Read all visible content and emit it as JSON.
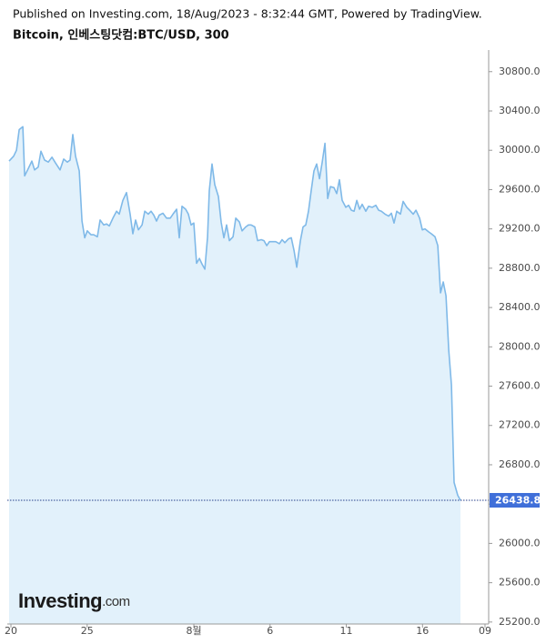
{
  "chart_data": {
    "type": "area",
    "source": "Published on Investing.com, 18/Aug/2023 - 8:32:44 GMT, Powered by TradingView.",
    "title": "Bitcoin, 인베스팅닷컴:BTC/USD, 300",
    "watermark": [
      "Investing",
      ".com"
    ],
    "color": "#7fb9e8",
    "fill_color": "#e2f1fb",
    "last_value_color": "#3f6fd9",
    "xlim": [
      -0.24,
      31.34
    ],
    "ylim": [
      25180,
      31020
    ],
    "xticks": [
      {
        "value": 0,
        "label": "20"
      },
      {
        "value": 5,
        "label": "25"
      },
      {
        "value": 12,
        "label": "8월"
      },
      {
        "value": 17,
        "label": "6"
      },
      {
        "value": 22,
        "label": "11"
      },
      {
        "value": 27,
        "label": "16"
      },
      {
        "value": 31.1,
        "label": "09"
      }
    ],
    "yticks": [
      {
        "value": 25200,
        "label": "25200.0"
      },
      {
        "value": 25600,
        "label": "25600.0"
      },
      {
        "value": 26000,
        "label": "26000.0"
      },
      {
        "value": 26400,
        "label": "26400.0"
      },
      {
        "value": 26800,
        "label": "26800.0"
      },
      {
        "value": 27200,
        "label": "27200.0"
      },
      {
        "value": 27600,
        "label": "27600.0"
      },
      {
        "value": 28000,
        "label": "28000.0"
      },
      {
        "value": 28400,
        "label": "28400.0"
      },
      {
        "value": 28800,
        "label": "28800.0"
      },
      {
        "value": 29200,
        "label": "29200.0"
      },
      {
        "value": 29600,
        "label": "29600.0"
      },
      {
        "value": 30000,
        "label": "30000.0"
      },
      {
        "value": 30400,
        "label": "30400.0"
      },
      {
        "value": 30800,
        "label": "30800.0"
      }
    ],
    "x": [
      -0.12,
      0.18,
      0.36,
      0.54,
      0.78,
      0.9,
      1.13,
      1.37,
      1.55,
      1.79,
      1.97,
      2.21,
      2.45,
      2.69,
      2.93,
      3.22,
      3.46,
      3.7,
      3.88,
      4.06,
      4.24,
      4.48,
      4.66,
      4.84,
      5.01,
      5.25,
      5.43,
      5.67,
      5.85,
      6.09,
      6.27,
      6.45,
      6.69,
      6.93,
      7.1,
      7.34,
      7.58,
      7.82,
      8.0,
      8.18,
      8.36,
      8.6,
      8.78,
      9.01,
      9.19,
      9.37,
      9.55,
      9.73,
      9.97,
      10.21,
      10.45,
      10.63,
      10.87,
      11.04,
      11.22,
      11.46,
      11.64,
      11.82,
      12.0,
      12.18,
      12.36,
      12.54,
      12.72,
      12.9,
      13.01,
      13.19,
      13.37,
      13.61,
      13.79,
      13.97,
      14.15,
      14.33,
      14.57,
      14.75,
      14.99,
      15.16,
      15.4,
      15.58,
      15.76,
      16.0,
      16.18,
      16.42,
      16.6,
      16.78,
      16.96,
      17.19,
      17.37,
      17.61,
      17.79,
      17.97,
      18.21,
      18.39,
      18.57,
      18.75,
      18.99,
      19.16,
      19.34,
      19.52,
      19.7,
      19.88,
      20.06,
      20.24,
      20.42,
      20.6,
      20.78,
      20.96,
      21.19,
      21.37,
      21.55,
      21.73,
      21.97,
      22.15,
      22.33,
      22.51,
      22.69,
      22.87,
      23.04,
      23.28,
      23.46,
      23.7,
      23.94,
      24.12,
      24.3,
      24.54,
      24.78,
      24.96,
      25.13,
      25.31,
      25.55,
      25.73,
      25.97,
      26.15,
      26.39,
      26.57,
      26.81,
      26.99,
      27.16,
      27.4,
      27.58,
      27.82,
      28.0,
      28.18,
      28.36,
      28.54,
      28.72,
      28.9,
      29.07,
      29.31,
      29.49
    ],
    "values": [
      29890,
      29940,
      30000,
      30210,
      30240,
      29740,
      29810,
      29890,
      29800,
      29830,
      29990,
      29900,
      29880,
      29930,
      29870,
      29800,
      29910,
      29880,
      29900,
      30160,
      29940,
      29790,
      29280,
      29110,
      29180,
      29140,
      29140,
      29120,
      29290,
      29240,
      29250,
      29230,
      29310,
      29380,
      29350,
      29490,
      29570,
      29350,
      29150,
      29290,
      29190,
      29240,
      29380,
      29350,
      29380,
      29340,
      29280,
      29340,
      29360,
      29310,
      29310,
      29350,
      29400,
      29110,
      29430,
      29400,
      29350,
      29240,
      29260,
      28850,
      28900,
      28840,
      28790,
      29120,
      29590,
      29860,
      29650,
      29530,
      29270,
      29110,
      29240,
      29080,
      29120,
      29310,
      29270,
      29180,
      29220,
      29240,
      29240,
      29220,
      29080,
      29090,
      29080,
      29030,
      29070,
      29070,
      29070,
      29050,
      29090,
      29060,
      29100,
      29110,
      28980,
      28810,
      29080,
      29220,
      29240,
      29380,
      29590,
      29790,
      29860,
      29710,
      29880,
      30070,
      29510,
      29630,
      29620,
      29560,
      29700,
      29490,
      29420,
      29440,
      29390,
      29380,
      29490,
      29400,
      29450,
      29380,
      29430,
      29420,
      29440,
      29390,
      29380,
      29350,
      29330,
      29360,
      29260,
      29380,
      29350,
      29480,
      29420,
      29390,
      29350,
      29390,
      29310,
      29190,
      29200,
      29170,
      29150,
      29120,
      29030,
      28550,
      28660,
      28520,
      27970,
      27610,
      26620,
      26490,
      26438.8
    ]
  }
}
